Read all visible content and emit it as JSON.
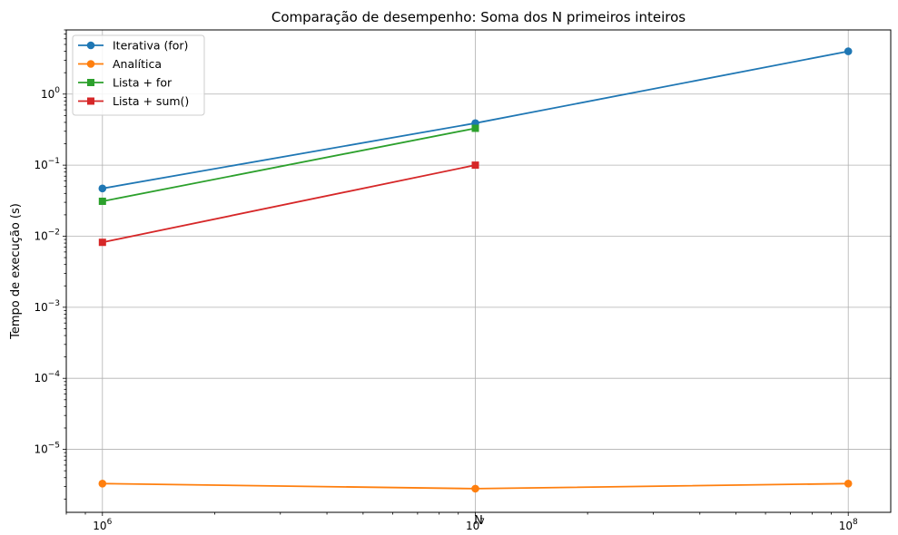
{
  "chart_data": {
    "type": "line",
    "title": "Comparação de desempenho: Soma dos N primeiros inteiros",
    "xlabel": "N",
    "ylabel": "Tempo de execução (s)",
    "xscale": "log",
    "yscale": "log",
    "xlim": [
      800000,
      130000000
    ],
    "ylim": [
      1.3e-06,
      8
    ],
    "grid": true,
    "legend_position": "top-left",
    "x_ticks": [
      {
        "value": 1000000,
        "base": "10",
        "exp": "6"
      },
      {
        "value": 10000000,
        "base": "10",
        "exp": "7"
      },
      {
        "value": 100000000,
        "base": "10",
        "exp": "8"
      }
    ],
    "y_ticks": [
      {
        "value": 1e-05,
        "base": "10",
        "exp": "−5"
      },
      {
        "value": 0.0001,
        "base": "10",
        "exp": "−4"
      },
      {
        "value": 0.001,
        "base": "10",
        "exp": "−3"
      },
      {
        "value": 0.01,
        "base": "10",
        "exp": "−2"
      },
      {
        "value": 0.1,
        "base": "10",
        "exp": "−1"
      },
      {
        "value": 1,
        "base": "10",
        "exp": "0"
      }
    ],
    "series": [
      {
        "name": "Iterativa (for)",
        "color": "#1f77b4",
        "marker": "circle",
        "x": [
          1000000,
          10000000,
          100000000
        ],
        "y": [
          0.047,
          0.39,
          4.0
        ]
      },
      {
        "name": "Analítica",
        "color": "#ff7f0e",
        "marker": "circle",
        "x": [
          1000000,
          10000000,
          100000000
        ],
        "y": [
          3.3e-06,
          2.8e-06,
          3.3e-06
        ]
      },
      {
        "name": "Lista + for",
        "color": "#2ca02c",
        "marker": "square",
        "x": [
          1000000,
          10000000
        ],
        "y": [
          0.031,
          0.33
        ]
      },
      {
        "name": "Lista + sum()",
        "color": "#d62728",
        "marker": "square",
        "x": [
          1000000,
          10000000
        ],
        "y": [
          0.0082,
          0.1
        ]
      }
    ]
  }
}
